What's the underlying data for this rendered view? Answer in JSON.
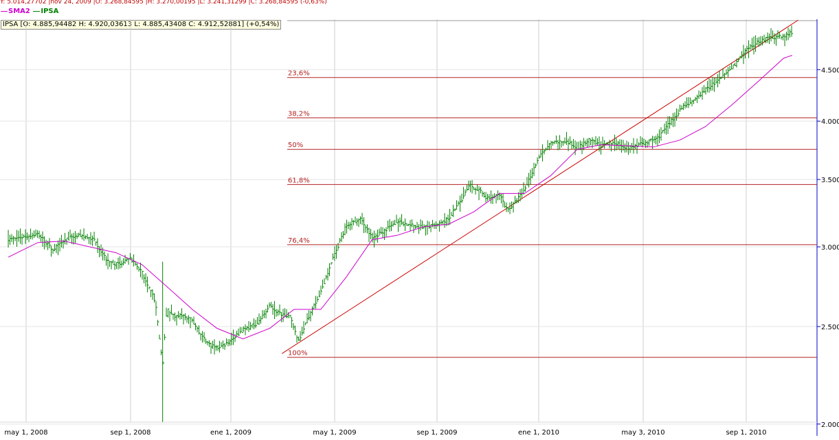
{
  "header": {
    "cursor_line": "Y: 5.014,27702 |nov 24, 2009 |O: 3.268,84595 |H: 3.270,00195 |L: 3.241,31299 |C: 3.268,84595 (-0,63%)",
    "legend_sma": "SMA2",
    "legend_ipsa": "IPSA",
    "ohlc_box": "IPSA [O: 4.885,94482  H: 4.920,03613  L: 4.885,43408  C: 4.912,52881] (+0,54%)"
  },
  "colors": {
    "price": "#008000",
    "sma": "#cc00cc",
    "fib": "#b22222",
    "trend": "#cc0000",
    "grid": "#cfcfcf",
    "axis": "#0000cc"
  },
  "chart_data": {
    "type": "line",
    "title": "",
    "xlabel": "",
    "ylabel": "",
    "y_scale": "log",
    "ylim": [
      1990,
      5050
    ],
    "x_ticks": [
      "may 1, 2008",
      "sep 1, 2008",
      "ene 1, 2009",
      "may 1, 2009",
      "sep 1, 2009",
      "ene 1, 2010",
      "may 3, 2010",
      "sep 1, 2010"
    ],
    "y_ticks": [
      {
        "value": 2000,
        "label": "2.000"
      },
      {
        "value": 2500,
        "label": "2.500"
      },
      {
        "value": 3000,
        "label": "3.000"
      },
      {
        "value": 3500,
        "label": "3.500"
      },
      {
        "value": 4000,
        "label": "4.000"
      },
      {
        "value": 4500,
        "label": "4.500"
      }
    ],
    "series": [
      {
        "name": "IPSA",
        "x": [
          "2008-04-10",
          "2008-05-15",
          "2008-06-01",
          "2008-06-20",
          "2008-07-05",
          "2008-07-20",
          "2008-08-05",
          "2008-08-20",
          "2008-09-01",
          "2008-09-15",
          "2008-10-01",
          "2008-10-10",
          "2008-10-15",
          "2008-10-25",
          "2008-11-05",
          "2008-11-15",
          "2008-11-25",
          "2008-12-05",
          "2008-12-15",
          "2008-12-25",
          "2009-01-15",
          "2009-02-01",
          "2009-02-15",
          "2009-02-25",
          "2009-03-10",
          "2009-03-20",
          "2009-04-01",
          "2009-04-15",
          "2009-05-01",
          "2009-05-15",
          "2009-06-01",
          "2009-06-15",
          "2009-07-01",
          "2009-07-15",
          "2009-08-01",
          "2009-08-15",
          "2009-09-01",
          "2009-09-15",
          "2009-10-01",
          "2009-10-10",
          "2009-10-20",
          "2009-11-01",
          "2009-11-15",
          "2009-11-24",
          "2009-12-01",
          "2009-12-15",
          "2010-01-01",
          "2010-01-15",
          "2010-02-01",
          "2010-02-15",
          "2010-03-01",
          "2010-03-15",
          "2010-04-01",
          "2010-04-15",
          "2010-05-03",
          "2010-05-20",
          "2010-06-05",
          "2010-06-20",
          "2010-07-01",
          "2010-07-15",
          "2010-08-01",
          "2010-08-15",
          "2010-09-01",
          "2010-09-15",
          "2010-10-01",
          "2010-10-15",
          "2010-10-25"
        ],
        "values": [
          3050,
          3090,
          2980,
          3060,
          3080,
          3050,
          2900,
          2880,
          2920,
          2830,
          2650,
          2280,
          2600,
          2560,
          2560,
          2540,
          2450,
          2400,
          2380,
          2400,
          2480,
          2520,
          2620,
          2580,
          2560,
          2420,
          2560,
          2700,
          2950,
          3150,
          3200,
          3060,
          3120,
          3180,
          3150,
          3140,
          3150,
          3200,
          3350,
          3450,
          3420,
          3350,
          3380,
          3268,
          3300,
          3420,
          3680,
          3800,
          3820,
          3760,
          3830,
          3780,
          3810,
          3760,
          3800,
          3850,
          4000,
          4150,
          4180,
          4300,
          4400,
          4520,
          4700,
          4800,
          4850,
          4850,
          4910
        ]
      },
      {
        "name": "SMA2",
        "x": [
          "2008-04-10",
          "2008-05-15",
          "2008-06-15",
          "2008-07-15",
          "2008-08-15",
          "2008-09-15",
          "2008-10-15",
          "2008-11-15",
          "2008-12-15",
          "2009-01-15",
          "2009-02-15",
          "2009-03-15",
          "2009-04-15",
          "2009-05-15",
          "2009-06-15",
          "2009-07-15",
          "2009-08-15",
          "2009-09-15",
          "2009-10-15",
          "2009-11-15",
          "2009-12-15",
          "2010-01-15",
          "2010-02-15",
          "2010-03-15",
          "2010-04-15",
          "2010-05-15",
          "2010-06-15",
          "2010-07-15",
          "2010-08-15",
          "2010-09-15",
          "2010-10-15",
          "2010-10-25"
        ],
        "values": [
          2930,
          3030,
          3040,
          3000,
          2960,
          2880,
          2740,
          2600,
          2490,
          2430,
          2490,
          2600,
          2600,
          2800,
          3050,
          3080,
          3140,
          3160,
          3250,
          3390,
          3390,
          3530,
          3750,
          3790,
          3780,
          3770,
          3830,
          3950,
          4150,
          4380,
          4620,
          4650
        ]
      }
    ],
    "fibonacci": [
      {
        "label": "23,6%",
        "value": 4420
      },
      {
        "label": "38,2%",
        "value": 4030
      },
      {
        "label": "50%",
        "value": 3750
      },
      {
        "label": "61,8%",
        "value": 3460
      },
      {
        "label": "76,4%",
        "value": 3015
      },
      {
        "label": "100%",
        "value": 2330
      }
    ],
    "trendline": {
      "x": [
        "2009-03-01",
        "2010-11-01"
      ],
      "values": [
        2350,
        5040
      ]
    },
    "grid": true
  }
}
